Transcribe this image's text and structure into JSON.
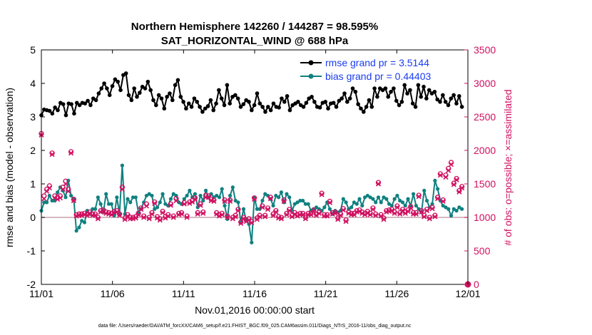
{
  "chart_data": {
    "type": "line",
    "title": "Northern Hemisphere 142260 / 144287 = 98.595%",
    "subtitle": "SAT_HORIZONTAL_WIND @ 688 hPa",
    "xlabel": "Nov.01,2016 00:00:00 start",
    "ylabel": "rmse and bias (model - observation)",
    "y2label": "# of obs: o=possible; ×=assimilated",
    "footnote": "data file: /Users/raeder/DAI/ATM_forcXX/CAM6_setup/f.e21.FHIST_BGC.f09_025.CAM6assim.011/Diags_NTrS_2016-11/obs_diag_output.nc",
    "x_ticks": [
      "11/01",
      "11/06",
      "11/11",
      "11/16",
      "11/21",
      "11/26",
      "12/01"
    ],
    "y_ticks": [
      "-2",
      "-1",
      "0",
      "1",
      "2",
      "3",
      "4",
      "5"
    ],
    "y2_ticks": [
      "0",
      "500",
      "1000",
      "1500",
      "2000",
      "2500",
      "3000",
      "3500"
    ],
    "xlim": [
      0,
      30
    ],
    "ylim": [
      -2,
      5
    ],
    "y2lim": [
      0,
      3500
    ],
    "legend_position": "top-right",
    "series": [
      {
        "name": "rmse",
        "legend": "rmse grand pr = 3.5144",
        "color": "#000000",
        "values": [
          3.05,
          3.22,
          3.2,
          3.18,
          3.1,
          3.28,
          3.2,
          3.42,
          3.38,
          3.05,
          3.4,
          3.38,
          3.1,
          3.42,
          3.35,
          3.42,
          3.4,
          3.48,
          3.35,
          3.55,
          3.5,
          3.7,
          3.85,
          4.0,
          3.85,
          3.65,
          3.92,
          4.12,
          4.05,
          3.8,
          4.25,
          4.3,
          3.65,
          3.5,
          3.85,
          3.6,
          3.72,
          3.9,
          3.85,
          4.05,
          3.8,
          3.5,
          3.35,
          3.65,
          3.55,
          3.25,
          3.6,
          3.7,
          3.5,
          3.95,
          4.1,
          3.6,
          3.45,
          3.25,
          3.4,
          3.3,
          3.55,
          3.45,
          3.3,
          3.15,
          3.25,
          3.32,
          3.5,
          3.2,
          3.4,
          3.8,
          3.55,
          3.35,
          3.95,
          3.4,
          3.6,
          3.65,
          3.55,
          3.3,
          3.38,
          3.5,
          3.45,
          3.2,
          3.35,
          3.7,
          3.4,
          3.3,
          3.15,
          3.3,
          3.2,
          3.4,
          3.3,
          3.28,
          3.55,
          3.45,
          3.62,
          3.2,
          3.35,
          3.4,
          3.45,
          3.35,
          3.3,
          3.42,
          3.55,
          3.6,
          3.45,
          3.3,
          3.28,
          3.42,
          3.45,
          3.25,
          3.4,
          3.42,
          3.3,
          3.48,
          3.55,
          3.7,
          3.45,
          3.55,
          3.85,
          3.75,
          3.38,
          3.25,
          3.15,
          3.3,
          3.5,
          3.3,
          3.85,
          3.6,
          3.85,
          3.8,
          3.85,
          3.6,
          3.75,
          3.85,
          3.48,
          3.35,
          3.45,
          3.95,
          3.7,
          3.8,
          3.4,
          3.3,
          3.95,
          3.6,
          3.9,
          3.55,
          3.8,
          3.7,
          3.75,
          3.52,
          3.45,
          3.65,
          3.45,
          3.35,
          3.55,
          3.65,
          3.4,
          3.62,
          3.3
        ]
      },
      {
        "name": "bias",
        "legend": "bias grand pr = 0.44403",
        "color": "#108080",
        "values": [
          0.2,
          0.45,
          0.45,
          0.65,
          0.5,
          0.5,
          0.75,
          0.9,
          0.8,
          0.6,
          1.1,
          0.65,
          0.55,
          -0.4,
          -0.3,
          -0.1,
          -0.15,
          0.2,
          0.1,
          0.25,
          0.25,
          0.6,
          0.4,
          0.15,
          0.7,
          0.4,
          0.4,
          0.05,
          0.6,
          0.1,
          1.55,
          0.1,
          0.55,
          0.45,
          0.6,
          0.6,
          0.15,
          0.25,
          0.45,
          0.65,
          0.7,
          0.65,
          0.25,
          0.3,
          0.45,
          0.7,
          0.4,
          0.35,
          0.55,
          0.7,
          0.65,
          0.45,
          0.4,
          0.55,
          0.65,
          0.8,
          0.6,
          0.7,
          0.3,
          0.65,
          0.5,
          0.8,
          0.6,
          0.7,
          0.6,
          0.65,
          0.6,
          0.85,
          0.35,
          -0.05,
          0.65,
          0.9,
          0.5,
          0.45,
          -0.15,
          0.25,
          -0.1,
          -0.2,
          -0.75,
          0.6,
          0.25,
          0.25,
          0.5,
          0.7,
          0.65,
          0.55,
          0.35,
          0.65,
          0.6,
          0.75,
          0.45,
          0.7,
          0.6,
          0.2,
          0.4,
          0.45,
          0.5,
          0.5,
          0.4,
          0.4,
          0.2,
          0.25,
          0.3,
          0.25,
          0.2,
          0.3,
          0.45,
          0.25,
          0.1,
          0.2,
          0.15,
          0.2,
          0.55,
          0.45,
          0.25,
          0.3,
          0.45,
          0.4,
          0.55,
          0.35,
          0.6,
          0.65,
          0.6,
          0.55,
          0.45,
          0.6,
          0.45,
          0.6,
          0.55,
          0.4,
          0.35,
          0.55,
          0.65,
          0.5,
          0.45,
          0.35,
          0.55,
          0.35,
          0.7,
          0.35,
          0.25,
          0.15,
          0.8,
          0.5,
          0.3,
          0.4,
          1.1,
          0.85,
          0.5,
          0.35,
          0.3,
          0.25,
          0.05,
          0.25,
          0.2,
          0.3,
          0.25
        ]
      },
      {
        "name": "obs_possible",
        "color": "#d01060",
        "values": [
          2250,
          1320,
          1420,
          1470,
          1960,
          1320,
          1300,
          1320,
          1450,
          1540,
          1420,
          1980,
          1270,
          1040,
          1050,
          1050,
          1060,
          1050,
          1080,
          1050,
          1050,
          1000,
          1100,
          1110,
          1080,
          1070,
          1060,
          1090,
          1100,
          1050,
          1450,
          990,
          1040,
          1000,
          1000,
          1010,
          1060,
          1140,
          1020,
          1200,
          1000,
          1070,
          1230,
          1010,
          980,
          1090,
          1010,
          1040,
          1200,
          1020,
          1280,
          1060,
          1070,
          1220,
          1020,
          1230,
          1250,
          1290,
          1070,
          1200,
          1080,
          1330,
          1320,
          1270,
          1260,
          1070,
          1040,
          1060,
          1260,
          1020,
          1260,
          1000,
          1030,
          1120,
          930,
          1000,
          960,
          980,
          940,
          1290,
          990,
          1030,
          1170,
          1030,
          1140,
          1300,
          1050,
          1100,
          1010,
          1000,
          1260,
          1060,
          1120,
          1030,
          1070,
          1040,
          1060,
          1060,
          1000,
          1060,
          1060,
          1110,
          1050,
          1080,
          1360,
          1040,
          1040,
          1240,
          1070,
          1080,
          990,
          1050,
          1130,
          960,
          1080,
          1060,
          1060,
          1100,
          1110,
          1080,
          1060,
          1090,
          1060,
          1140,
          1050,
          1520,
          1040,
          990,
          1100,
          1110,
          1120,
          1080,
          1170,
          1070,
          1120,
          1080,
          1110,
          1160,
          1070,
          1070,
          1330,
          1100,
          1030,
          1120,
          1000,
          1150,
          1030,
          1300,
          1650,
          1260,
          1630,
          1730,
          1820,
          1510,
          1580,
          1400,
          1460
        ]
      },
      {
        "name": "obs_assimilated",
        "color": "#d01060",
        "values": [
          2230,
          1280,
          1390,
          1440,
          1940,
          1290,
          1270,
          1290,
          1420,
          1500,
          1390,
          1960,
          1250,
          1020,
          1030,
          1030,
          1040,
          1030,
          1060,
          1030,
          1030,
          980,
          1080,
          1090,
          1060,
          1050,
          1040,
          1070,
          1080,
          1030,
          1420,
          970,
          1020,
          980,
          980,
          990,
          1040,
          1120,
          1000,
          1170,
          980,
          1050,
          1210,
          990,
          960,
          1070,
          990,
          1020,
          1180,
          1000,
          1250,
          1040,
          1050,
          1200,
          1000,
          1210,
          1230,
          1270,
          1050,
          1180,
          1060,
          1300,
          1300,
          1250,
          1240,
          1050,
          1020,
          1040,
          1240,
          1000,
          1240,
          980,
          1010,
          1100,
          910,
          980,
          940,
          960,
          920,
          1270,
          970,
          1010,
          1150,
          1010,
          1120,
          1280,
          1030,
          1080,
          990,
          980,
          1240,
          1040,
          1100,
          1010,
          1050,
          1020,
          1040,
          1040,
          980,
          1040,
          1040,
          1090,
          1030,
          1060,
          1340,
          1020,
          1020,
          1220,
          1050,
          1060,
          970,
          1030,
          1110,
          940,
          1060,
          1040,
          1040,
          1080,
          1090,
          1060,
          1040,
          1070,
          1040,
          1120,
          1030,
          1500,
          1020,
          970,
          1080,
          1090,
          1100,
          1060,
          1150,
          1050,
          1100,
          1060,
          1090,
          1140,
          1050,
          1050,
          1310,
          1080,
          1010,
          1100,
          980,
          1130,
          1010,
          1280,
          1630,
          1240,
          1600,
          1700,
          1790,
          1490,
          1560,
          1380,
          1440
        ]
      }
    ]
  }
}
